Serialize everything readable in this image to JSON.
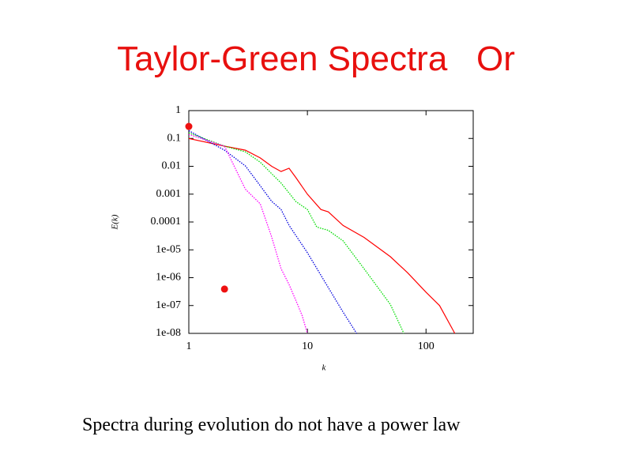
{
  "slide": {
    "title": "Taylor-Green Spectra   Or",
    "caption": "Spectra during evolution do not have a power law"
  },
  "chart_data": {
    "type": "line",
    "x_label": "k",
    "y_label": "E(k)",
    "log_x": true,
    "log_y": true,
    "xlim": [
      1,
      250
    ],
    "xticks": [
      1,
      10,
      100
    ],
    "ylim": [
      1e-08,
      1
    ],
    "yticks": [
      1,
      0.1,
      0.01,
      0.001,
      0.0001,
      {
        "value": 1e-05,
        "label": "1e-05"
      },
      {
        "value": 1e-06,
        "label": "1e-06"
      },
      {
        "value": 1e-07,
        "label": "1e-07"
      },
      {
        "value": 1e-08,
        "label": "1e-08"
      }
    ],
    "series": [
      {
        "color": "#ff0000",
        "style": "solid",
        "x": [
          1,
          2,
          3,
          4,
          5,
          6,
          7,
          8,
          10,
          13,
          15,
          20,
          30,
          50,
          70,
          100,
          130,
          175
        ],
        "values": [
          0.1,
          0.053,
          0.038,
          0.02,
          0.01,
          0.0065,
          0.0085,
          0.0039,
          0.001,
          0.00028,
          0.00023,
          7.5e-05,
          2.8e-05,
          5.7e-06,
          1.5e-06,
          3e-07,
          1e-07,
          1e-08
        ]
      },
      {
        "color": "#00dd00",
        "style": "dotted",
        "x": [
          1,
          2,
          3,
          4,
          5,
          6,
          8,
          10,
          12,
          15,
          20,
          30,
          50,
          65
        ],
        "values": [
          0.16,
          0.053,
          0.033,
          0.014,
          0.0054,
          0.0025,
          0.00054,
          0.00028,
          6.6e-05,
          5e-05,
          2.1e-05,
          2.1e-06,
          1.1e-07,
          1e-08
        ]
      },
      {
        "color": "#0000dd",
        "style": "dotted",
        "x": [
          1,
          2,
          3,
          4,
          5,
          6,
          7,
          10,
          15,
          20,
          26
        ],
        "values": [
          0.19,
          0.038,
          0.0103,
          0.002,
          0.00055,
          0.00028,
          7.6e-05,
          7.9e-06,
          4.4e-07,
          5.8e-08,
          1e-08
        ]
      },
      {
        "color": "#ff00ff",
        "style": "dotted",
        "x": [
          1,
          2,
          3,
          4,
          5,
          6,
          7,
          8,
          9,
          10
        ],
        "values": [
          0.14,
          0.053,
          0.0015,
          0.00045,
          2.9e-05,
          2.1e-06,
          5.7e-07,
          1.5e-07,
          4.5e-08,
          1e-08
        ]
      }
    ],
    "markers": {
      "color": "#ee1111",
      "x": [
        1,
        2
      ],
      "values": [
        0.27,
        3.9e-07
      ]
    }
  }
}
